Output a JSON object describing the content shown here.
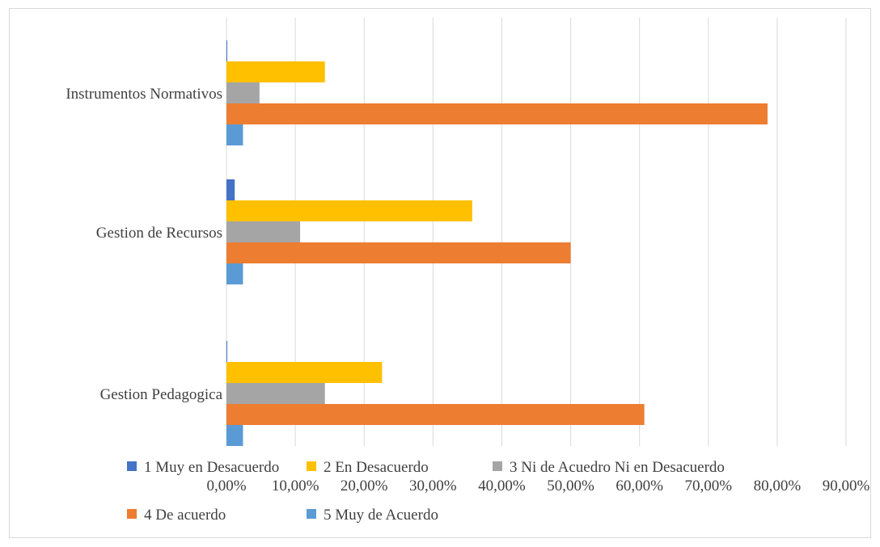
{
  "chart_data": {
    "type": "bar",
    "orientation": "horizontal",
    "categories": [
      "Instrumentos Normativos",
      "Gestion de Recursos",
      "Gestion Pedagogica"
    ],
    "series": [
      {
        "name": "1 Muy en Desacuerdo",
        "color": "#4472c4",
        "values": [
          0.1,
          1.2,
          0.1
        ]
      },
      {
        "name": "2 En Desacuerdo",
        "color": "#ffc000",
        "values": [
          14.3,
          35.7,
          22.6
        ]
      },
      {
        "name": "3 Ni de Acuedro Ni en Desacuerdo",
        "color": "#a5a5a5",
        "values": [
          4.8,
          10.7,
          14.3
        ]
      },
      {
        "name": "4 De acuerdo",
        "color": "#ed7d31",
        "values": [
          78.6,
          50.0,
          60.7
        ]
      },
      {
        "name": "5 Muy de Acuerdo",
        "color": "#5b9bd5",
        "values": [
          2.4,
          2.4,
          2.4
        ]
      }
    ],
    "xlim": [
      0,
      90
    ],
    "xticks": [
      0,
      10,
      20,
      30,
      40,
      50,
      60,
      70,
      80,
      90
    ],
    "xtick_labels": [
      "0,00%",
      "10,00%",
      "20,00%",
      "30,00%",
      "40,00%",
      "50,00%",
      "60,00%",
      "70,00%",
      "80,00%",
      "90,00%"
    ],
    "grid": "vertical",
    "legend_position": "bottom",
    "title": "",
    "xlabel": "",
    "ylabel": ""
  }
}
